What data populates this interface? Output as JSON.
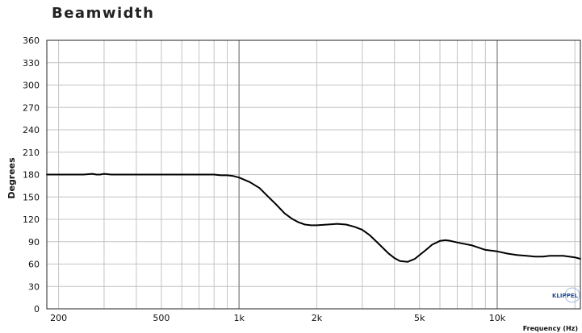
{
  "chart_data": {
    "type": "line",
    "title": "Beamwidth",
    "xlabel": "Frequency (Hz)",
    "ylabel": "Degrees",
    "x_scale": "log",
    "xlim": [
      180,
      21000
    ],
    "ylim": [
      0,
      360
    ],
    "grid": true,
    "y_ticks": [
      0,
      30,
      60,
      90,
      120,
      150,
      180,
      210,
      240,
      270,
      300,
      330,
      360
    ],
    "x_tick_labels": [
      {
        "value": 200,
        "label": "200"
      },
      {
        "value": 500,
        "label": "500"
      },
      {
        "value": 1000,
        "label": "1k"
      },
      {
        "value": 2000,
        "label": "2k"
      },
      {
        "value": 5000,
        "label": "5k"
      },
      {
        "value": 10000,
        "label": "10k"
      }
    ],
    "x_minor_grid": [
      200,
      300,
      400,
      500,
      600,
      700,
      800,
      900,
      1000,
      2000,
      3000,
      4000,
      5000,
      6000,
      7000,
      8000,
      9000,
      10000,
      20000
    ],
    "x_major_grid": [
      1000,
      10000
    ],
    "series": [
      {
        "color": "#000000",
        "x": [
          180,
          200,
          250,
          270,
          280,
          290,
          300,
          320,
          400,
          500,
          600,
          700,
          800,
          850,
          900,
          950,
          1000,
          1100,
          1200,
          1300,
          1400,
          1500,
          1600,
          1700,
          1800,
          1900,
          2000,
          2200,
          2400,
          2600,
          2800,
          3000,
          3200,
          3500,
          3800,
          4000,
          4200,
          4500,
          4800,
          5000,
          5300,
          5600,
          6000,
          6300,
          6600,
          7000,
          8000,
          9000,
          10000,
          11000,
          12000,
          13000,
          14000,
          15000,
          16000,
          17000,
          18000,
          19000,
          20000,
          21000
        ],
        "y": [
          180,
          180,
          180,
          181,
          180,
          180,
          181,
          180,
          180,
          180,
          180,
          180,
          180,
          179,
          179,
          178,
          176,
          170,
          162,
          150,
          139,
          128,
          121,
          116,
          113,
          112,
          112,
          113,
          114,
          113,
          110,
          106,
          99,
          86,
          74,
          68,
          64,
          63,
          67,
          72,
          79,
          86,
          91,
          92,
          91,
          89,
          85,
          79,
          77,
          74,
          72,
          71,
          70,
          70,
          71,
          71,
          71,
          70,
          69,
          67
        ]
      }
    ]
  },
  "watermark": {
    "text": "KLIPPEL"
  }
}
